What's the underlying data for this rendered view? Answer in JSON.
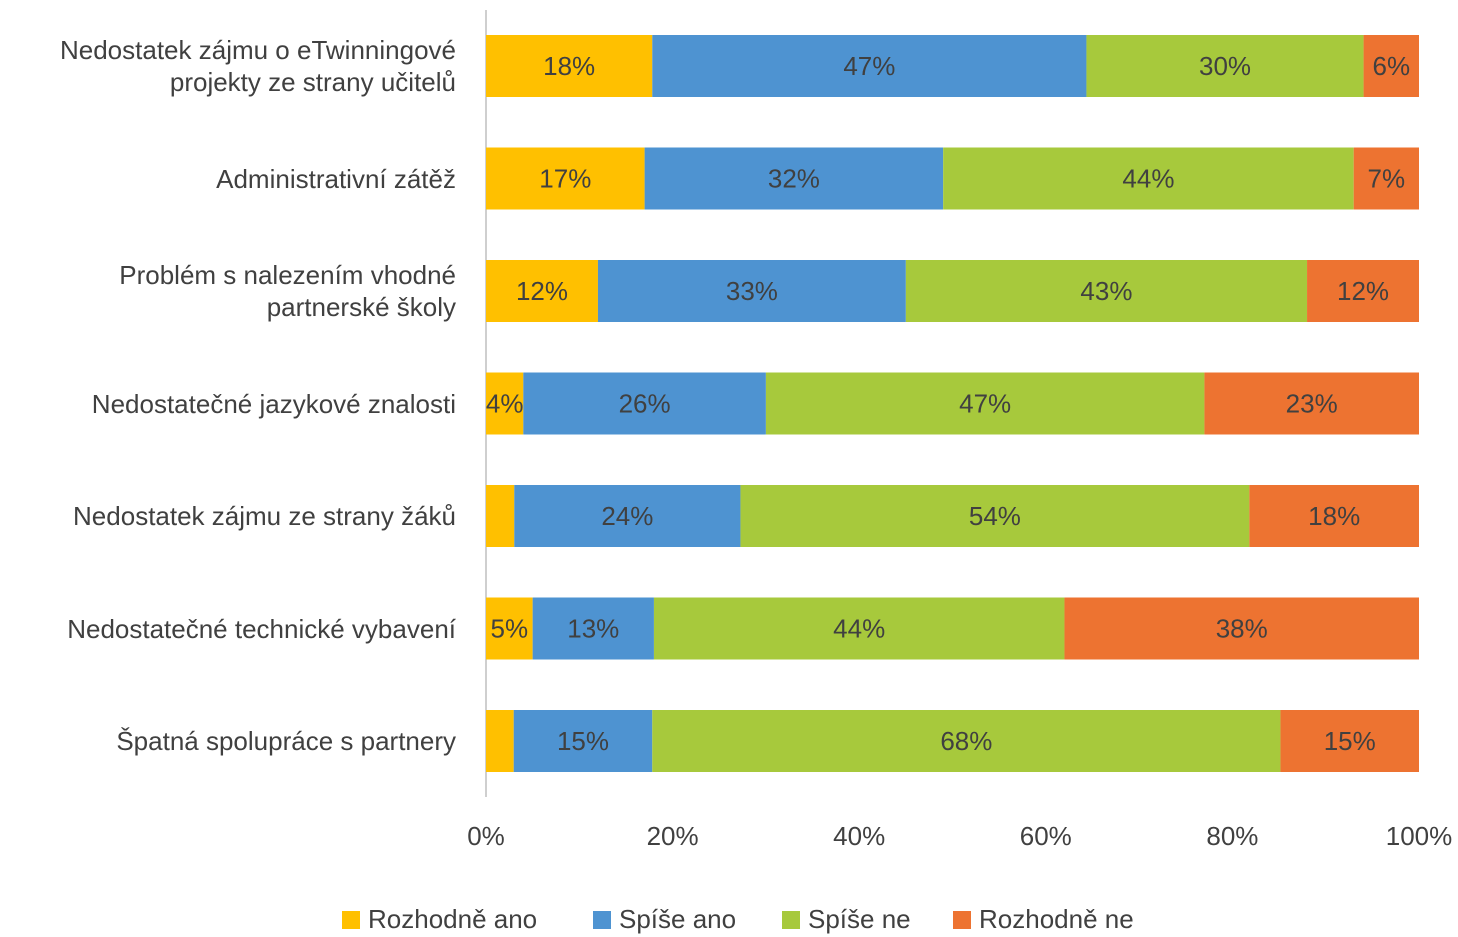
{
  "chart_data": {
    "type": "bar",
    "orientation": "horizontal",
    "stacking": "percent",
    "categories": [
      "Nedostatek zájmu o eTwinningové projekty ze strany učitelů",
      "Administrativní zátěž",
      "Problém s nalezením vhodné partnerské školy",
      "Nedostatečné jazykové znalosti",
      "Nedostatek zájmu ze strany žáků",
      "Nedostatečné technické vybavení",
      "Špatná spolupráce s partnery"
    ],
    "series": [
      {
        "name": "Rozhodně ano",
        "color": "#FFC000",
        "values": [
          18,
          17,
          12,
          4,
          3,
          5,
          3
        ],
        "value_labels": [
          "18%",
          "17%",
          "12%",
          "4%",
          null,
          "5%",
          null
        ]
      },
      {
        "name": "Spíše ano",
        "color": "#4E93D1",
        "values": [
          47,
          32,
          33,
          26,
          24,
          13,
          15
        ],
        "value_labels": [
          "47%",
          "32%",
          "33%",
          "26%",
          "24%",
          "13%",
          "15%"
        ]
      },
      {
        "name": "Spíše ne",
        "color": "#A7C93C",
        "values": [
          30,
          44,
          43,
          47,
          54,
          44,
          68
        ],
        "value_labels": [
          "30%",
          "44%",
          "43%",
          "47%",
          "54%",
          "44%",
          "68%"
        ]
      },
      {
        "name": "Rozhodně ne",
        "color": "#ED7331",
        "values": [
          6,
          7,
          12,
          23,
          18,
          38,
          15
        ],
        "value_labels": [
          "6%",
          "7%",
          "12%",
          "23%",
          "18%",
          "38%",
          "15%"
        ]
      }
    ],
    "xlim": [
      0,
      100
    ],
    "xticks": [
      {
        "value": 0,
        "label": "0%"
      },
      {
        "value": 20,
        "label": "20%"
      },
      {
        "value": 40,
        "label": "40%"
      },
      {
        "value": 60,
        "label": "60%"
      },
      {
        "value": 80,
        "label": "80%"
      },
      {
        "value": 100,
        "label": "100%"
      }
    ],
    "legend": "bottom"
  }
}
